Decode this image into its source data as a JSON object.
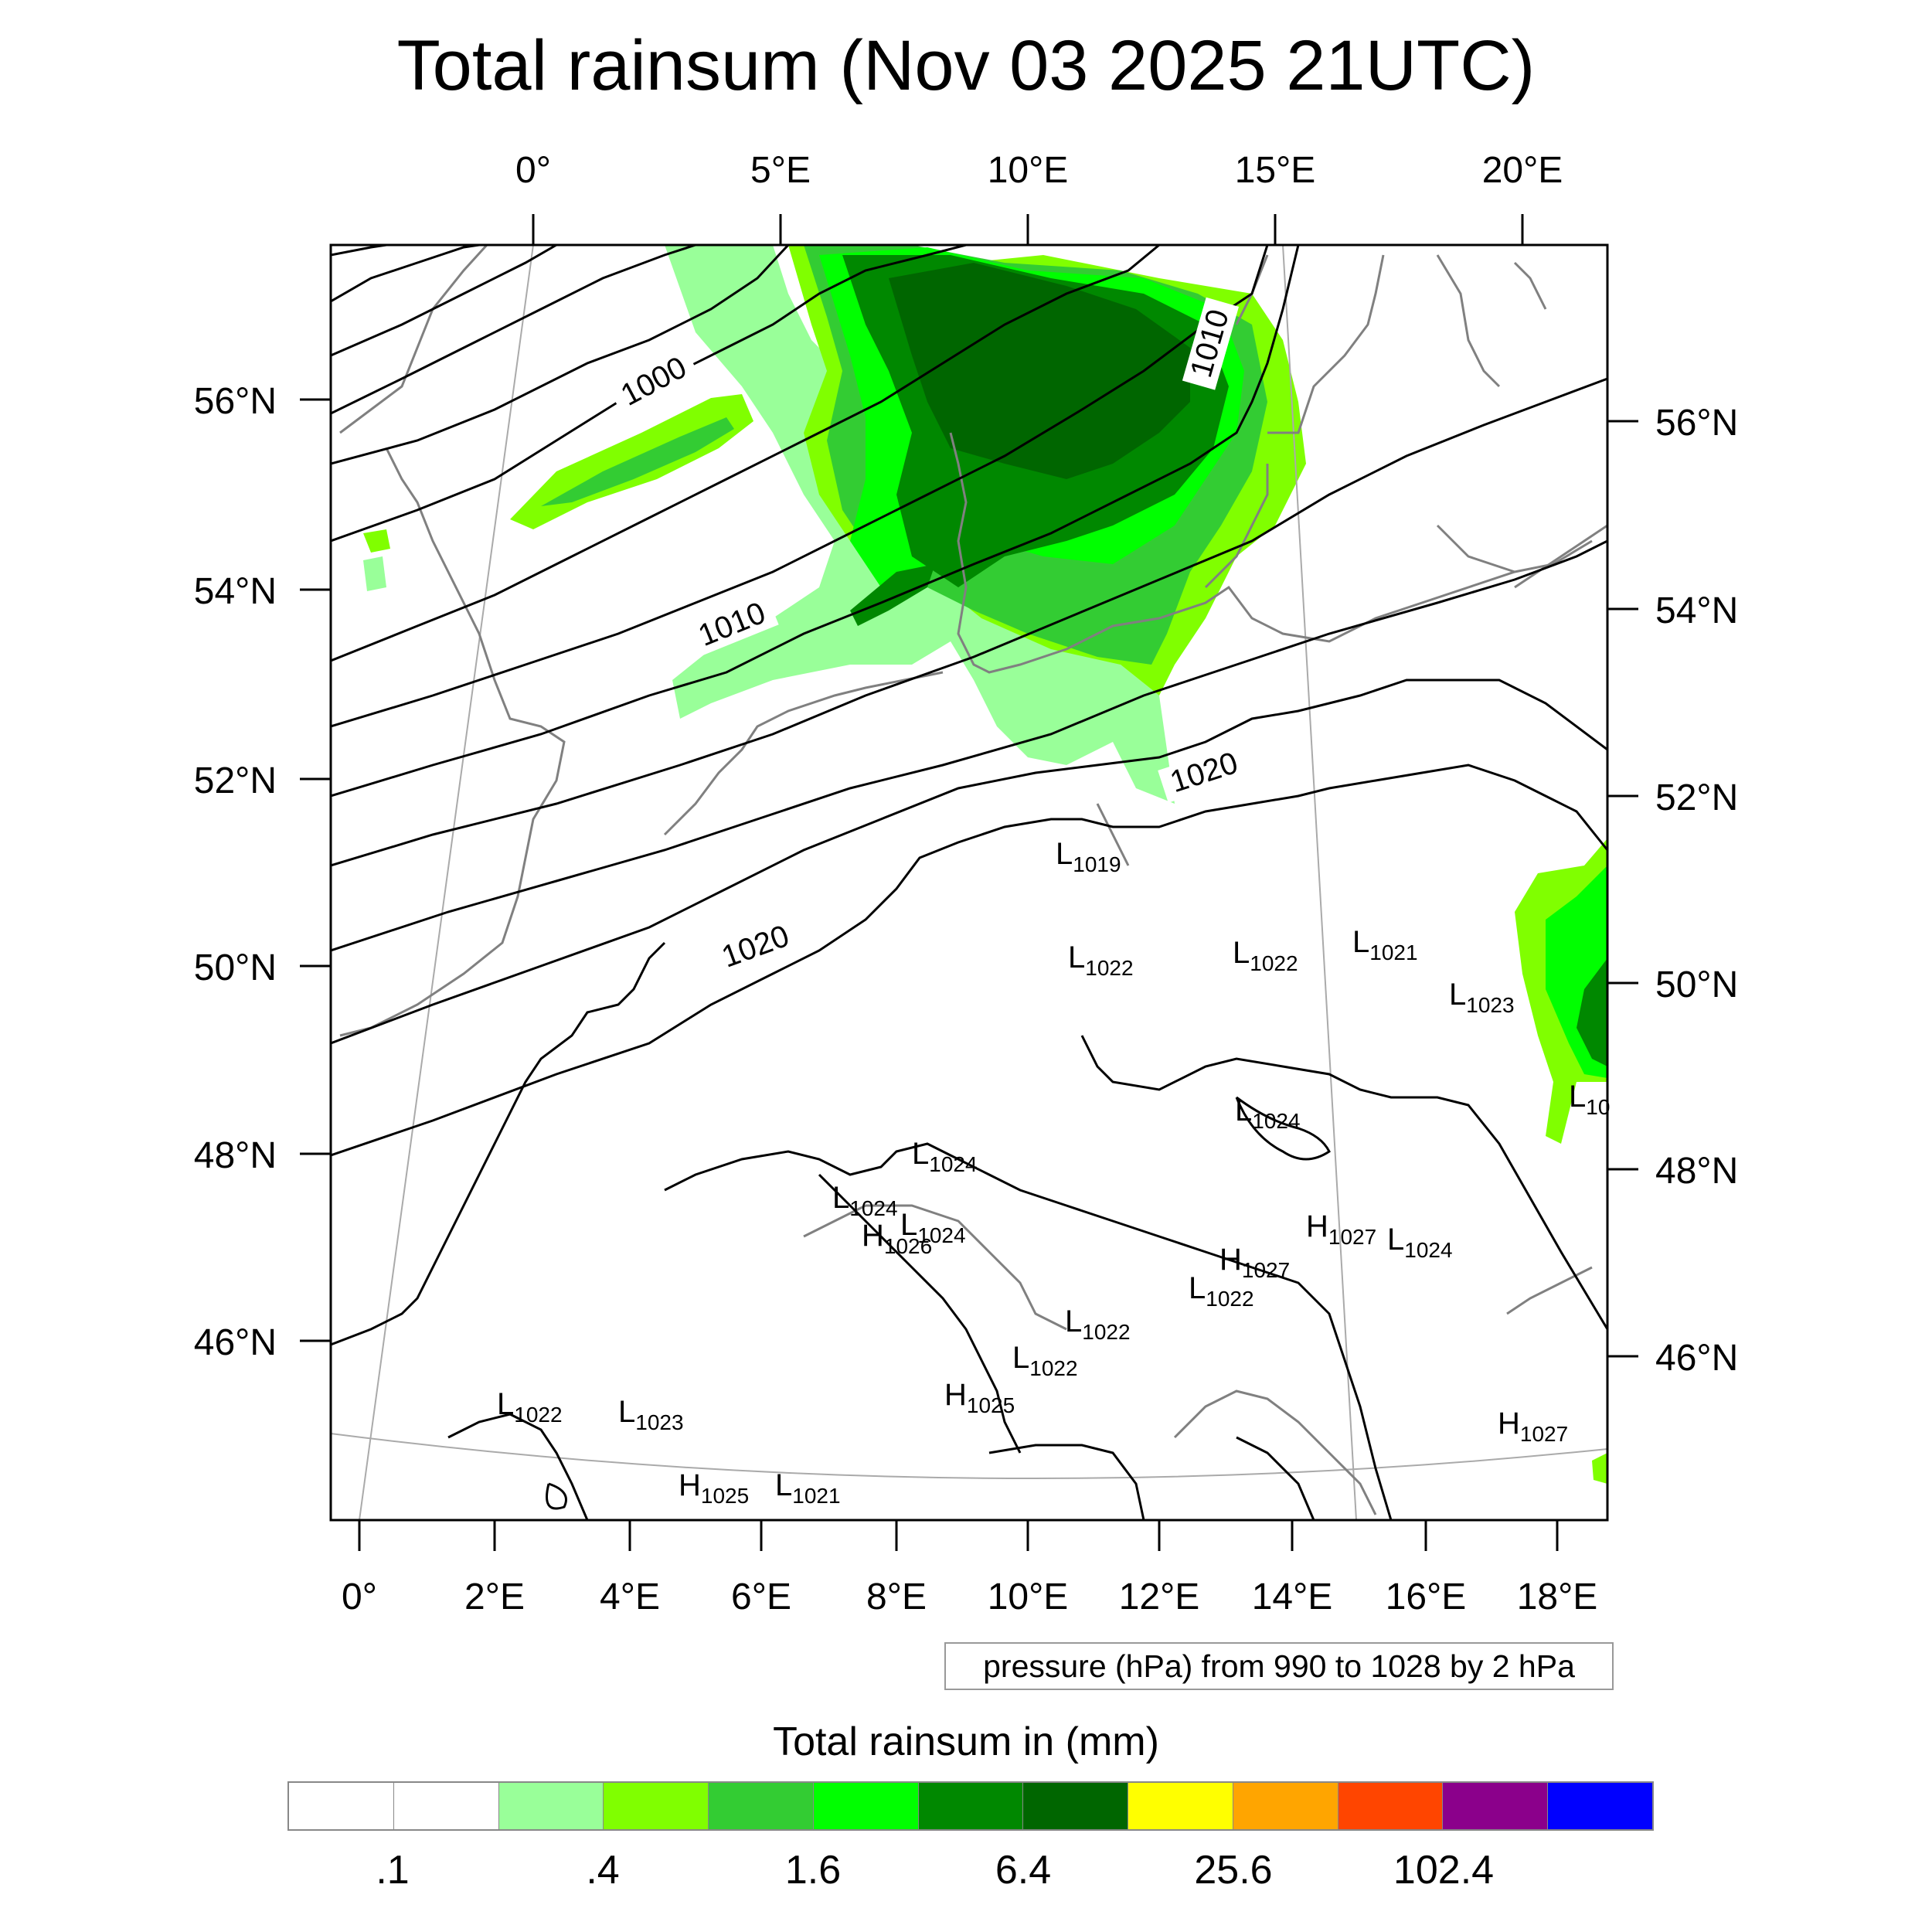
{
  "title": "Total rainsum (Nov 03 2025 21UTC)",
  "top_longitude_labels": [
    "0°",
    "5°E",
    "10°E",
    "15°E",
    "20°E"
  ],
  "bottom_longitude_labels": [
    "0°",
    "2°E",
    "4°E",
    "6°E",
    "8°E",
    "10°E",
    "12°E",
    "14°E",
    "16°E",
    "18°E"
  ],
  "left_latitude_labels": [
    "56°N",
    "54°N",
    "52°N",
    "50°N",
    "48°N",
    "46°N"
  ],
  "right_latitude_labels": [
    "56°N",
    "54°N",
    "52°N",
    "50°N",
    "48°N",
    "46°N"
  ],
  "isobar_labels": [
    {
      "text": "1000"
    },
    {
      "text": "1010"
    },
    {
      "text": "1010"
    },
    {
      "text": "1020"
    },
    {
      "text": "1020"
    }
  ],
  "pressure_centers": [
    {
      "letter": "L",
      "value": "1019"
    },
    {
      "letter": "L",
      "value": "1022"
    },
    {
      "letter": "L",
      "value": "1022"
    },
    {
      "letter": "L",
      "value": "1021"
    },
    {
      "letter": "L",
      "value": "1023"
    },
    {
      "letter": "L",
      "value": "1024"
    },
    {
      "letter": "L",
      "value": "1024"
    },
    {
      "letter": "L",
      "value": "1024"
    },
    {
      "letter": "L",
      "value": "1024"
    },
    {
      "letter": "H",
      "value": "1026"
    },
    {
      "letter": "H",
      "value": "1027"
    },
    {
      "letter": "H",
      "value": "1027"
    },
    {
      "letter": "L",
      "value": "1024"
    },
    {
      "letter": "L",
      "value": "1022"
    },
    {
      "letter": "L",
      "value": "1022"
    },
    {
      "letter": "L",
      "value": "1022"
    },
    {
      "letter": "H",
      "value": "1025"
    },
    {
      "letter": "L",
      "value": "1022"
    },
    {
      "letter": "L",
      "value": "1023"
    },
    {
      "letter": "H",
      "value": "1025"
    },
    {
      "letter": "L",
      "value": "1021"
    },
    {
      "letter": "H",
      "value": "1027"
    },
    {
      "letter": "L",
      "value": "10"
    }
  ],
  "legend_note": "pressure (hPa) from 990 to 1028 by 2 hPa",
  "colorbar": {
    "title": "Total rainsum in (mm)",
    "colors": [
      "#ffffff",
      "#ffffff",
      "#99ff99",
      "#80ff00",
      "#33cc33",
      "#00ff00",
      "#008800",
      "#006600",
      "#ffff00",
      "#ffa500",
      "#ff4500",
      "#8b008b",
      "#0000ff"
    ],
    "tick_labels": [
      ".1",
      ".4",
      "1.6",
      "6.4",
      "25.6",
      "102.4"
    ]
  },
  "colors": {
    "isobar": "#000000",
    "coastline": "#808080",
    "graticule": "#aaaaaa"
  }
}
